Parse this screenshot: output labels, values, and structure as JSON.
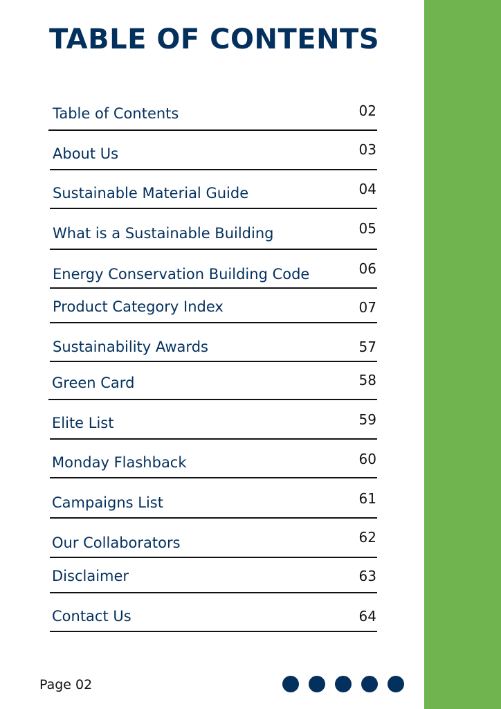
{
  "title": "TABLE OF CONTENTS",
  "entries": [
    {
      "label": "Table of Contents",
      "page": "02"
    },
    {
      "label": "About Us",
      "page": "03"
    },
    {
      "label": "Sustainable Material Guide",
      "page": "04"
    },
    {
      "label": "What is a Sustainable Building",
      "page": "05"
    },
    {
      "label": "Energy Conservation Building Code",
      "page": "06"
    },
    {
      "label": "Product Category Index",
      "page": "07"
    },
    {
      "label": "Sustainability Awards",
      "page": "57"
    },
    {
      "label": "Green Card",
      "page": "58"
    },
    {
      "label": "Elite List",
      "page": "59"
    },
    {
      "label": "Monday Flashback",
      "page": "60"
    },
    {
      "label": "Campaigns List",
      "page": "61"
    },
    {
      "label": "Our Collaborators",
      "page": "62"
    },
    {
      "label": "Disclaimer",
      "page": "63"
    },
    {
      "label": "Contact Us",
      "page": "64"
    }
  ],
  "footer": {
    "page_label": "Page 02"
  },
  "colors": {
    "navy": "#03305d",
    "green": "#70b450"
  }
}
